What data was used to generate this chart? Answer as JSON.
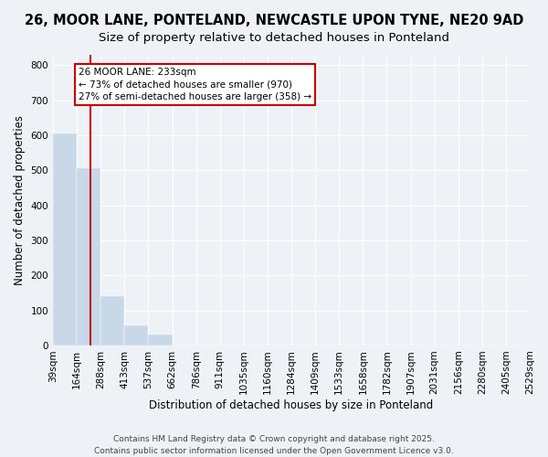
{
  "title": "26, MOOR LANE, PONTELAND, NEWCASTLE UPON TYNE, NE20 9AD",
  "subtitle": "Size of property relative to detached houses in Ponteland",
  "bar_edges": [
    39,
    164,
    288,
    413,
    537,
    662,
    786,
    911,
    1035,
    1160,
    1284,
    1409,
    1533,
    1658,
    1782,
    1907,
    2031,
    2156,
    2280,
    2405,
    2529
  ],
  "bar_heights": [
    605,
    505,
    140,
    58,
    30,
    0,
    0,
    0,
    0,
    0,
    0,
    0,
    0,
    0,
    0,
    0,
    0,
    0,
    0,
    0
  ],
  "bar_color": "#c8d8e8",
  "bar_edgecolor": "#c8d8e8",
  "vline_x": 233,
  "vline_color": "#cc0000",
  "ylabel": "Number of detached properties",
  "xlabel": "Distribution of detached houses by size in Ponteland",
  "ylim": [
    0,
    830
  ],
  "yticks": [
    0,
    100,
    200,
    300,
    400,
    500,
    600,
    700,
    800
  ],
  "annotation_line1": "26 MOOR LANE: 233sqm",
  "annotation_line2": "← 73% of detached houses are smaller (970)",
  "annotation_line3": "27% of semi-detached houses are larger (358) →",
  "footer1": "Contains HM Land Registry data © Crown copyright and database right 2025.",
  "footer2": "Contains public sector information licensed under the Open Government Licence v3.0.",
  "bg_color": "#eef2f7",
  "title_fontsize": 10.5,
  "subtitle_fontsize": 9.5,
  "axis_label_fontsize": 8.5,
  "tick_fontsize": 7.5,
  "annot_fontsize": 7.5,
  "footer_fontsize": 6.5
}
